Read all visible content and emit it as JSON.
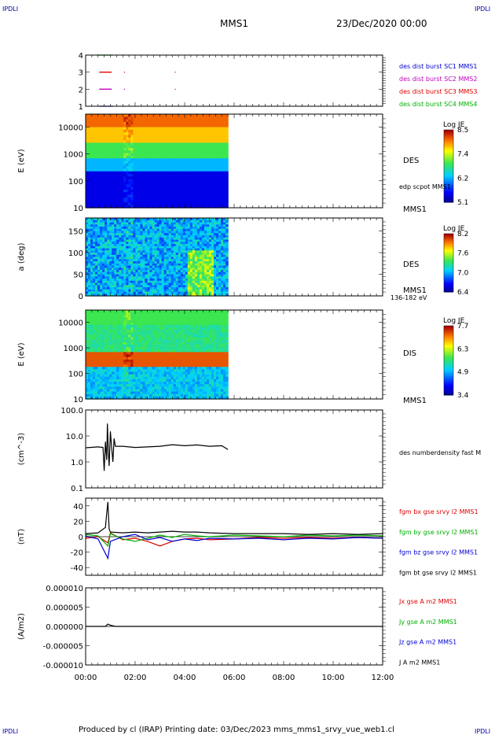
{
  "corner_marks": [
    "IPDLI",
    "IPDLI",
    "IPDLI",
    "IPDLI"
  ],
  "header": {
    "title": "MMS1",
    "date": "23/Dec/2020 00:00"
  },
  "footer": {
    "text": "Produced by cl (IRAP)   Printing date: 03/Dec/2023   mms_mms1_srvy_vue_web1.cl"
  },
  "time_axis": {
    "labels": [
      "00:00",
      "02:00",
      "04:00",
      "06:00",
      "08:00",
      "10:00",
      "12:00"
    ]
  },
  "colors": {
    "red": "#e00000",
    "green": "#00b000",
    "blue": "#0000d0",
    "magenta": "#c000c0",
    "black": "#000000"
  },
  "chart_data": [
    {
      "type": "scatter",
      "ylim": [
        1,
        4
      ],
      "yticks": [
        "1",
        "2",
        "3",
        "4"
      ],
      "legend": [
        {
          "text": "des dist burst SC1 MMS1",
          "color": "#0000d0"
        },
        {
          "text": "des dist burst SC2 MMS2",
          "color": "#c000c0"
        },
        {
          "text": "des dist burst SC3 MMS3",
          "color": "#e00000"
        },
        {
          "text": "des dist burst SC4 MMS4",
          "color": "#00b000"
        }
      ],
      "series": [
        {
          "y": 4,
          "color": "#00b000",
          "segments": [
            [
              0.45,
              1.1
            ]
          ],
          "dots": [
            1.5,
            3.6
          ]
        },
        {
          "y": 3,
          "color": "#e00000",
          "segments": [
            [
              0.55,
              1.05
            ]
          ],
          "dots": [
            1.55,
            3.6
          ]
        },
        {
          "y": 2,
          "color": "#c000c0",
          "segments": [
            [
              0.55,
              1.05
            ]
          ],
          "dots": [
            1.55,
            3.6
          ]
        },
        {
          "y": 1,
          "color": "#0000d0",
          "segments": [
            [
              0.55,
              1.1
            ]
          ],
          "dots": [
            1.5
          ]
        }
      ]
    },
    {
      "type": "heatmap",
      "ylabel": "E (eV)",
      "yscale": "log",
      "ylim": [
        10,
        30000
      ],
      "yticks": [
        "10",
        "100",
        "1000",
        "10000"
      ],
      "data_end_hour": 5.75,
      "side_labels": [
        "DES",
        "edp scpot MMS1",
        "MMS1"
      ],
      "colorbar": {
        "title": "Log JE",
        "ticks": [
          "5.1",
          "6.2",
          "7.4",
          "8.5"
        ]
      }
    },
    {
      "type": "heatmap",
      "ylabel": "a (deg)",
      "ylim": [
        0,
        180
      ],
      "yticks": [
        "0",
        "50",
        "100",
        "150"
      ],
      "data_end_hour": 5.75,
      "side_labels": [
        "DES",
        "MMS1",
        "136-182 eV"
      ],
      "colorbar": {
        "title": "Log JE",
        "ticks": [
          "6.4",
          "7.0",
          "7.6",
          "8.2"
        ]
      }
    },
    {
      "type": "heatmap",
      "ylabel": "E (eV)",
      "yscale": "log",
      "ylim": [
        10,
        30000
      ],
      "yticks": [
        "10",
        "100",
        "1000",
        "10000"
      ],
      "data_end_hour": 5.75,
      "side_labels": [
        "DIS",
        "MMS1"
      ],
      "colorbar": {
        "title": "Log JE",
        "ticks": [
          "3.4",
          "4.9",
          "6.3",
          "7.7"
        ]
      }
    },
    {
      "type": "line",
      "ylabel": "(cm^-3)",
      "yscale": "log",
      "ylim": [
        0.1,
        100
      ],
      "yticks": [
        "0.1",
        "1.0",
        "10.0",
        "100.0"
      ],
      "legend": [
        {
          "text": "des numberdensity fast M",
          "color": "#000000"
        }
      ],
      "series": [
        {
          "color": "#000000",
          "x": [
            0,
            0.5,
            0.7,
            0.75,
            0.8,
            0.85,
            0.88,
            0.92,
            0.95,
            1.0,
            1.05,
            1.1,
            1.15,
            1.2,
            1.5,
            2.0,
            2.5,
            3.0,
            3.5,
            4.0,
            4.5,
            5.0,
            5.5,
            5.75
          ],
          "y": [
            3.5,
            3.8,
            3.6,
            0.45,
            6.0,
            1.2,
            30,
            2.0,
            0.7,
            15,
            3.5,
            1.0,
            8.0,
            4.0,
            4.0,
            3.6,
            3.8,
            4.0,
            4.6,
            4.2,
            4.5,
            4.0,
            4.2,
            3.0
          ]
        }
      ]
    },
    {
      "type": "line",
      "ylabel": "(nT)",
      "ylim": [
        -50,
        50
      ],
      "yticks": [
        "-40",
        "-20",
        "0",
        "20",
        "40"
      ],
      "legend": [
        {
          "text": "fgm bx gse srvy l2 MMS1",
          "color": "#e00000"
        },
        {
          "text": "fgm by gse srvy l2 MMS1",
          "color": "#00b000"
        },
        {
          "text": "fgm bz gse srvy l2 MMS1",
          "color": "#0000d0"
        },
        {
          "text": "fgm bt gse srvy l2 MMS1",
          "color": "#000000"
        }
      ],
      "series": [
        {
          "color": "#e00000",
          "x": [
            0,
            0.5,
            0.9,
            1.0,
            1.5,
            2.0,
            2.5,
            3.0,
            3.5,
            4.0,
            4.5,
            5.0,
            6.0,
            7.0,
            8.0,
            9.0,
            10.0,
            11.0,
            12.0
          ],
          "y": [
            -2,
            0,
            -8,
            5,
            -4,
            -2,
            -6,
            -12,
            -6,
            -3,
            -2,
            -4,
            -3,
            -1,
            -2,
            -1,
            -2,
            -1,
            -2
          ]
        },
        {
          "color": "#00b000",
          "x": [
            0,
            0.5,
            0.9,
            1.0,
            1.5,
            2.0,
            2.5,
            3.0,
            3.5,
            4.0,
            4.5,
            5.0,
            6.0,
            7.0,
            8.0,
            9.0,
            10.0,
            11.0,
            12.0
          ],
          "y": [
            3,
            1,
            -12,
            4,
            -3,
            -6,
            -2,
            2,
            -1,
            3,
            1,
            0,
            2,
            1,
            0,
            2,
            1,
            2,
            1
          ]
        },
        {
          "color": "#0000d0",
          "x": [
            0,
            0.5,
            0.9,
            1.0,
            1.5,
            2.0,
            2.5,
            3.0,
            3.5,
            4.0,
            4.5,
            5.0,
            6.0,
            7.0,
            8.0,
            9.0,
            10.0,
            11.0,
            12.0
          ],
          "y": [
            1,
            -3,
            -28,
            -6,
            0,
            3,
            -4,
            -1,
            -6,
            -3,
            -5,
            -2,
            -3,
            -2,
            -4,
            -2,
            -3,
            -1,
            -2
          ]
        },
        {
          "color": "#000000",
          "x": [
            0,
            0.5,
            0.8,
            0.85,
            0.9,
            0.95,
            1.0,
            1.5,
            2.0,
            2.5,
            3.0,
            3.5,
            4.0,
            4.5,
            5.0,
            6.0,
            7.0,
            8.0,
            9.0,
            10.0,
            11.0,
            12.0
          ],
          "y": [
            4,
            5,
            12,
            30,
            45,
            10,
            6,
            5,
            6,
            5,
            6,
            7,
            6,
            6,
            5,
            4,
            4,
            4,
            3,
            4,
            3,
            4
          ]
        }
      ]
    },
    {
      "type": "line",
      "ylabel": "(A/m2)",
      "ylim": [
        -1e-05,
        1e-05
      ],
      "yticks": [
        "-0.000010",
        "-0.000005",
        "0.000000",
        "0.000005",
        "0.000010"
      ],
      "legend": [
        {
          "text": "Jx gse A m2 MMS1",
          "color": "#e00000"
        },
        {
          "text": "Jy gse A m2 MMS1",
          "color": "#00b000"
        },
        {
          "text": "Jz gse A m2 MMS1",
          "color": "#0000d0"
        },
        {
          "text": "J A m2 MMS1",
          "color": "#000000"
        }
      ],
      "series": [
        {
          "color": "#000000",
          "x": [
            0,
            0.8,
            0.9,
            1.0,
            1.2,
            12.0
          ],
          "y": [
            0,
            0,
            6e-07,
            3e-07,
            0,
            0
          ]
        }
      ]
    }
  ]
}
